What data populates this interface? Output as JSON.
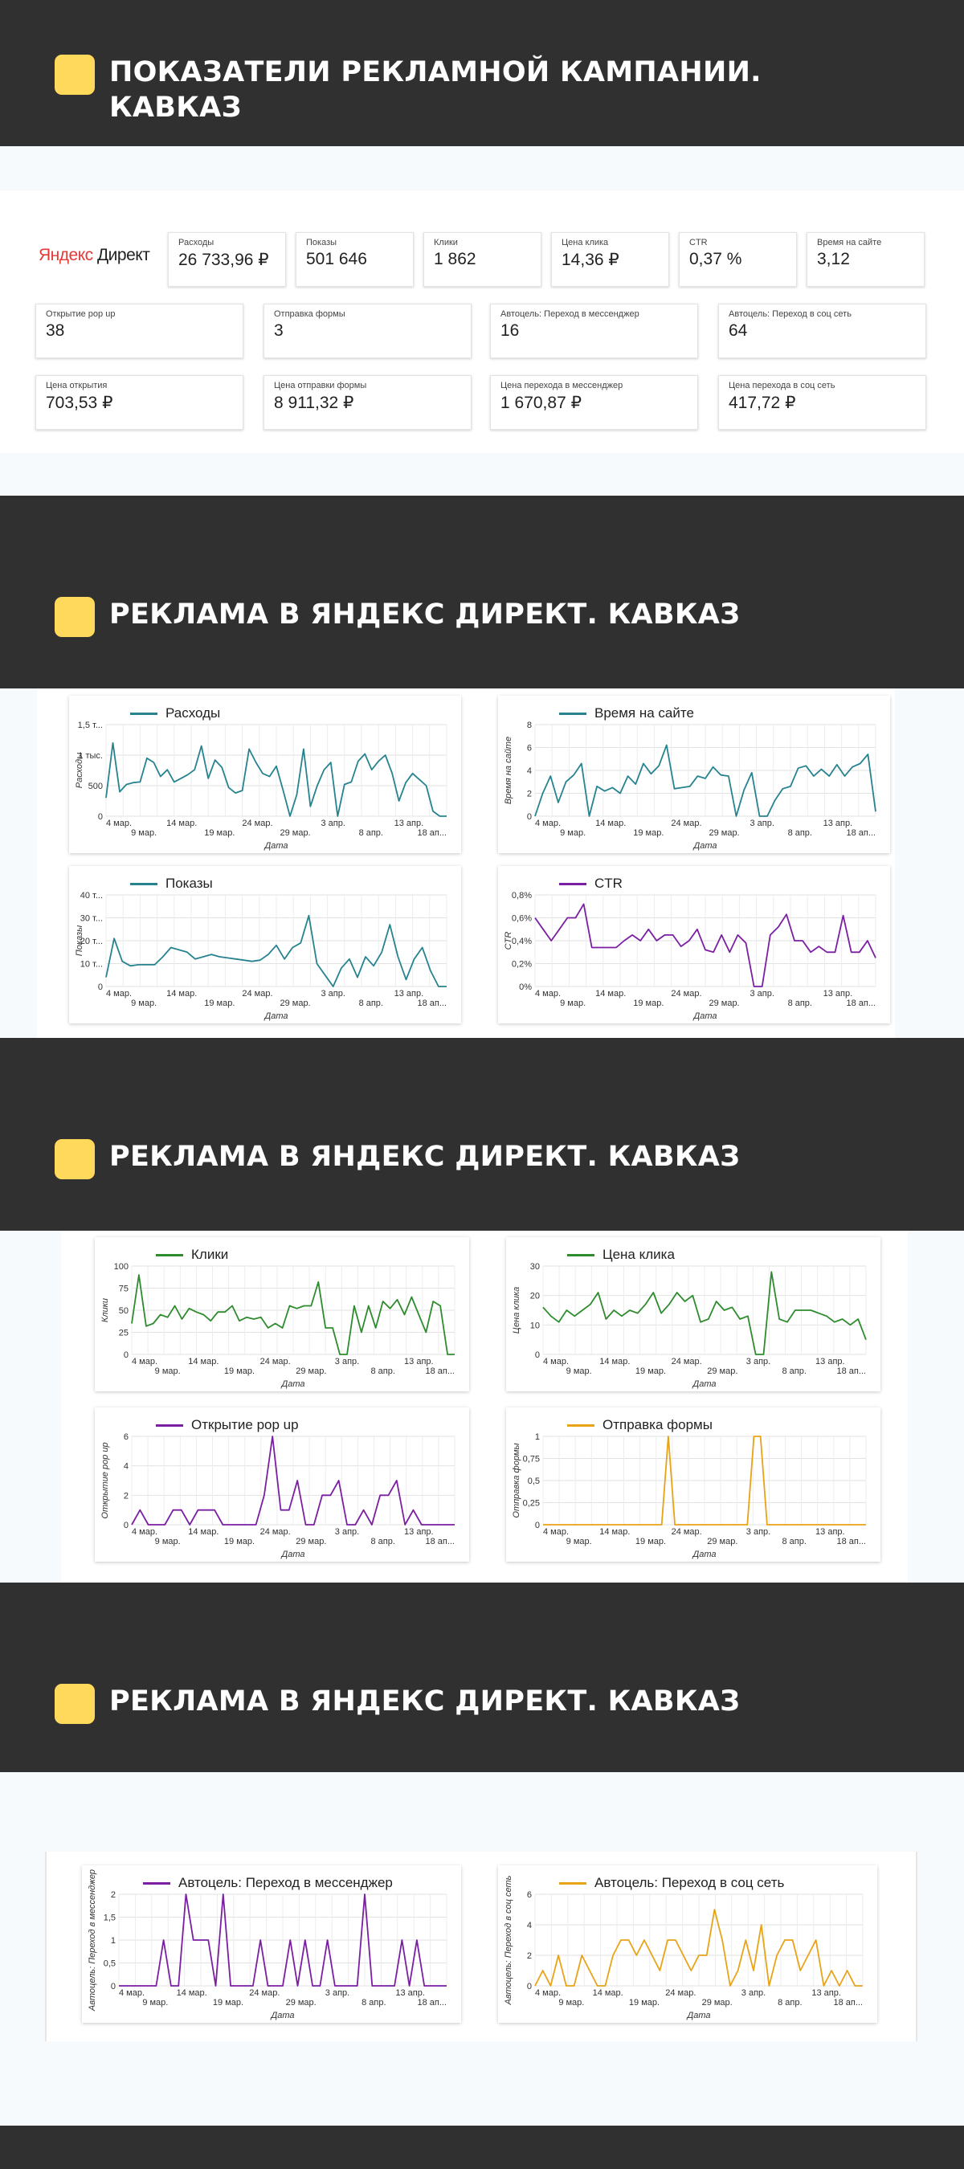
{
  "section1": {
    "title": "ПОКАЗАТЕЛИ РЕКЛАМНОЙ КАМПАНИИ.\nКАВКАЗ"
  },
  "logo": {
    "part1": "Яндекс",
    "part2": " Директ"
  },
  "kpis_row1": [
    {
      "label": "Расходы",
      "value": "26 733,96 ₽"
    },
    {
      "label": "Показы",
      "value": "501 646"
    },
    {
      "label": "Клики",
      "value": "1 862"
    },
    {
      "label": "Цена клика",
      "value": "14,36 ₽"
    },
    {
      "label": "CTR",
      "value": "0,37 %"
    },
    {
      "label": "Время на сайте",
      "value": "3,12"
    }
  ],
  "kpis_row2": [
    {
      "label": "Открытие pop up",
      "value": "38"
    },
    {
      "label": "Отправка формы",
      "value": "3"
    },
    {
      "label": "Автоцель: Переход в мессенджер",
      "value": "16"
    },
    {
      "label": "Автоцель: Переход в соц сеть",
      "value": "64"
    }
  ],
  "kpis_row3": [
    {
      "label": "Цена открытия",
      "value": "703,53 ₽"
    },
    {
      "label": "Цена отправки формы",
      "value": "8 911,32 ₽"
    },
    {
      "label": "Цена перехода в мессенджер",
      "value": "1 670,87 ₽"
    },
    {
      "label": "Цена перехода в соц сеть",
      "value": "417,72 ₽"
    }
  ],
  "section2": {
    "title": "РЕКЛАМА В ЯНДЕКС ДИРЕКТ. КАВКАЗ"
  },
  "section3": {
    "title": "РЕКЛАМА В ЯНДЕКС ДИРЕКТ. КАВКАЗ"
  },
  "section4": {
    "title": "РЕКЛАМА В ЯНДЕКС ДИРЕКТ. КАВКАЗ"
  },
  "colors": {
    "band": "#303030",
    "accent": "#ffd95c",
    "teal": "#26838f",
    "purple": "#7b1fa2",
    "green": "#2e8b2e",
    "orange": "#e8a317"
  },
  "chart_data": [
    {
      "type": "line",
      "title": "Расходы",
      "xlabel": "Дата",
      "ylabel": "Расходы",
      "x_ticks": [
        "4 мар.",
        "9 мар.",
        "14 мар.",
        "19 мар.",
        "24 мар.",
        "29 мар.",
        "3 апр.",
        "8 апр.",
        "13 апр.",
        "18 ап..."
      ],
      "y_ticks": [
        "0",
        "500",
        "1 тыс.",
        "1,5 т..."
      ],
      "ylim": [
        0,
        1500
      ],
      "color": "#26838f",
      "series": [
        {
          "name": "Расходы",
          "values": [
            300,
            1200,
            400,
            520,
            550,
            560,
            950,
            880,
            650,
            760,
            560,
            620,
            680,
            760,
            1150,
            620,
            920,
            800,
            470,
            380,
            420,
            1100,
            880,
            700,
            650,
            820,
            420,
            0,
            350,
            1100,
            160,
            500,
            760,
            880,
            0,
            520,
            560,
            900,
            1020,
            760,
            900,
            1000,
            700,
            250,
            550,
            700,
            600,
            500,
            80,
            0,
            0
          ]
        }
      ]
    },
    {
      "type": "line",
      "title": "Время на сайте",
      "xlabel": "Дата",
      "ylabel": "Время на сайте",
      "x_ticks": [
        "4 мар.",
        "9 мар.",
        "14 мар.",
        "19 мар.",
        "24 мар.",
        "29 мар.",
        "3 апр.",
        "8 апр.",
        "13 апр.",
        "18 ап..."
      ],
      "y_ticks": [
        "0",
        "2",
        "4",
        "6",
        "8"
      ],
      "ylim": [
        0,
        8
      ],
      "color": "#26838f",
      "series": [
        {
          "name": "Время на сайте",
          "values": [
            0,
            2,
            3.5,
            1.2,
            3,
            3.6,
            4.6,
            0,
            2.6,
            2.2,
            2.5,
            2,
            3.5,
            2.8,
            4.6,
            3.7,
            4.4,
            6.2,
            2.4,
            2.5,
            2.6,
            3.5,
            3.3,
            4.3,
            3.6,
            3.5,
            0,
            2.3,
            3.8,
            0,
            0,
            1.4,
            2.4,
            2.6,
            4.2,
            4.4,
            3.5,
            4.1,
            3.5,
            4.5,
            3.5,
            4.3,
            4.6,
            5.4,
            0.4
          ]
        }
      ]
    },
    {
      "type": "line",
      "title": "Показы",
      "xlabel": "Дата",
      "ylabel": "Показы",
      "x_ticks": [
        "4 мар.",
        "9 мар.",
        "14 мар.",
        "19 мар.",
        "24 мар.",
        "29 мар.",
        "3 апр.",
        "8 апр.",
        "13 апр.",
        "18 ап..."
      ],
      "y_ticks": [
        "0",
        "10 т...",
        "20 т...",
        "30 т...",
        "40 т..."
      ],
      "ylim": [
        0,
        40000
      ],
      "color": "#26838f",
      "series": [
        {
          "name": "Показы",
          "values": [
            4000,
            21000,
            11000,
            9000,
            9500,
            9500,
            9500,
            13000,
            17000,
            16000,
            15000,
            12000,
            13000,
            14000,
            13000,
            12500,
            12000,
            11500,
            11000,
            11500,
            14000,
            18000,
            12000,
            17000,
            19000,
            31000,
            10000,
            5000,
            0,
            8000,
            12000,
            4000,
            13000,
            9000,
            15000,
            27000,
            13000,
            3000,
            12000,
            17000,
            7000,
            0,
            0
          ]
        }
      ]
    },
    {
      "type": "line",
      "title": "CTR",
      "xlabel": "Дата",
      "ylabel": "CTR",
      "x_ticks": [
        "4 мар.",
        "9 мар.",
        "14 мар.",
        "19 мар.",
        "24 мар.",
        "29 мар.",
        "3 апр.",
        "8 апр.",
        "13 апр.",
        "18 ап..."
      ],
      "y_ticks": [
        "0%",
        "0,2%",
        "0,4%",
        "0,6%",
        "0,8%"
      ],
      "ylim": [
        0,
        0.8
      ],
      "color": "#7b1fa2",
      "series": [
        {
          "name": "CTR",
          "values": [
            0.6,
            0.5,
            0.4,
            0.5,
            0.6,
            0.6,
            0.72,
            0.34,
            0.34,
            0.34,
            0.34,
            0.4,
            0.45,
            0.4,
            0.5,
            0.4,
            0.45,
            0.45,
            0.35,
            0.4,
            0.5,
            0.32,
            0.3,
            0.45,
            0.3,
            0.45,
            0.38,
            0,
            0,
            0.45,
            0.52,
            0.63,
            0.4,
            0.4,
            0.3,
            0.35,
            0.3,
            0.3,
            0.62,
            0.3,
            0.3,
            0.4,
            0.25
          ]
        }
      ]
    },
    {
      "type": "line",
      "title": "Клики",
      "xlabel": "Дата",
      "ylabel": "Клики",
      "x_ticks": [
        "4 мар.",
        "9 мар.",
        "14 мар.",
        "19 мар.",
        "24 мар.",
        "29 мар.",
        "3 апр.",
        "8 апр.",
        "13 апр.",
        "18 ап..."
      ],
      "y_ticks": [
        "0",
        "25",
        "50",
        "75",
        "100"
      ],
      "ylim": [
        0,
        100
      ],
      "color": "#2e8b2e",
      "series": [
        {
          "name": "Клики",
          "values": [
            35,
            90,
            32,
            35,
            45,
            42,
            55,
            40,
            52,
            48,
            45,
            38,
            48,
            48,
            55,
            38,
            42,
            40,
            42,
            30,
            35,
            30,
            55,
            52,
            55,
            55,
            82,
            30,
            30,
            0,
            0,
            55,
            25,
            55,
            30,
            60,
            52,
            62,
            45,
            65,
            45,
            25,
            60,
            55,
            0,
            0
          ]
        }
      ]
    },
    {
      "type": "line",
      "title": "Цена клика",
      "xlabel": "Дата",
      "ylabel": "Цена клика",
      "x_ticks": [
        "4 мар.",
        "9 мар.",
        "14 мар.",
        "19 мар.",
        "24 мар.",
        "29 мар.",
        "3 апр.",
        "8 апр.",
        "13 апр.",
        "18 ап..."
      ],
      "y_ticks": [
        "0",
        "10",
        "20",
        "30"
      ],
      "ylim": [
        0,
        30
      ],
      "color": "#2e8b2e",
      "series": [
        {
          "name": "Цена клика",
          "values": [
            16,
            13,
            11,
            15,
            13,
            15,
            17,
            21,
            12,
            15,
            13,
            15,
            14,
            17,
            21,
            14,
            17,
            21,
            18,
            20,
            11,
            12,
            18,
            15,
            16,
            12,
            13,
            0,
            0,
            28,
            12,
            11,
            15,
            15,
            15,
            14,
            13,
            11,
            12,
            10,
            12,
            5
          ]
        }
      ]
    },
    {
      "type": "line",
      "title": "Открытие pop up",
      "xlabel": "Дата",
      "ylabel": "Открытие pop up",
      "x_ticks": [
        "4 мар.",
        "9 мар.",
        "14 мар.",
        "19 мар.",
        "24 мар.",
        "29 мар.",
        "3 апр.",
        "8 апр.",
        "13 апр.",
        "18 ап..."
      ],
      "y_ticks": [
        "0",
        "2",
        "4",
        "6"
      ],
      "ylim": [
        0,
        6
      ],
      "color": "#7b1fa2",
      "series": [
        {
          "name": "Открытие pop up",
          "values": [
            0,
            1,
            0,
            0,
            0,
            1,
            1,
            0,
            1,
            1,
            1,
            0,
            0,
            0,
            0,
            0,
            2,
            6,
            1,
            1,
            3,
            0,
            0,
            2,
            2,
            3,
            0,
            0,
            1,
            0,
            2,
            2,
            3,
            0,
            1,
            0,
            0,
            0,
            0,
            0
          ]
        }
      ]
    },
    {
      "type": "line",
      "title": "Отправка формы",
      "xlabel": "Дата",
      "ylabel": "Отправка формы",
      "x_ticks": [
        "4 мар.",
        "9 мар.",
        "14 мар.",
        "19 мар.",
        "24 мар.",
        "29 мар.",
        "3 апр.",
        "8 апр.",
        "13 апр.",
        "18 ап..."
      ],
      "y_ticks": [
        "0",
        "0,25",
        "0,5",
        "0,75",
        "1"
      ],
      "ylim": [
        0,
        1
      ],
      "color": "#e8a317",
      "series": [
        {
          "name": "Отправка формы",
          "values": [
            0,
            0,
            0,
            0,
            0,
            0,
            0,
            0,
            0,
            0,
            0,
            0,
            0,
            0,
            0,
            0,
            0,
            0,
            0,
            1,
            0,
            0,
            0,
            0,
            0,
            0,
            0,
            0,
            0,
            0,
            0,
            0,
            1,
            1,
            0,
            0,
            0,
            0,
            0,
            0,
            0,
            0,
            0,
            0,
            0,
            0,
            0,
            0,
            0,
            0
          ]
        }
      ]
    },
    {
      "type": "line",
      "title": "Автоцель: Переход в мессенджер",
      "xlabel": "Дата",
      "ylabel": "Автоцель: Переход в мессенджер",
      "x_ticks": [
        "4 мар.",
        "9 мар.",
        "14 мар.",
        "19 мар.",
        "24 мар.",
        "29 мар.",
        "3 апр.",
        "8 апр.",
        "13 апр.",
        "18 ап..."
      ],
      "y_ticks": [
        "0",
        "0,5",
        "1",
        "1,5",
        "2"
      ],
      "ylim": [
        0,
        2
      ],
      "color": "#7b1fa2",
      "series": [
        {
          "name": "Автоцель: Переход в мессенджер",
          "values": [
            0,
            0,
            0,
            0,
            0,
            0,
            1,
            0,
            0,
            2,
            1,
            1,
            1,
            0,
            2,
            0,
            0,
            0,
            0,
            1,
            0,
            0,
            0,
            1,
            0,
            1,
            0,
            0,
            1,
            0,
            0,
            0,
            0,
            2,
            0,
            0,
            0,
            0,
            1,
            0,
            1,
            0,
            0,
            0,
            0
          ]
        }
      ]
    },
    {
      "type": "line",
      "title": "Автоцель: Переход в соц сеть",
      "xlabel": "Дата",
      "ylabel": "Автоцель: Переход в соц сеть",
      "x_ticks": [
        "4 мар.",
        "9 мар.",
        "14 мар.",
        "19 мар.",
        "24 мар.",
        "29 мар.",
        "3 апр.",
        "8 апр.",
        "13 апр.",
        "18 ап..."
      ],
      "y_ticks": [
        "0",
        "2",
        "4",
        "6"
      ],
      "ylim": [
        0,
        6
      ],
      "color": "#e8a317",
      "series": [
        {
          "name": "Автоцель: Переход в соц сеть",
          "values": [
            0,
            1,
            0,
            2,
            0,
            0,
            2,
            1,
            0,
            0,
            2,
            3,
            3,
            2,
            3,
            2,
            1,
            3,
            3,
            2,
            1,
            2,
            2,
            5,
            3,
            0,
            1,
            3,
            1,
            4,
            0,
            2,
            3,
            3,
            1,
            2,
            3,
            0,
            1,
            0,
            1,
            0,
            0
          ]
        }
      ]
    }
  ]
}
